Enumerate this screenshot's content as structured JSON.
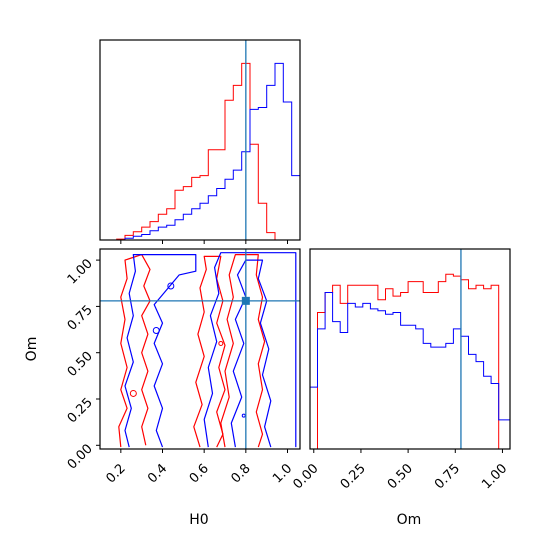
{
  "chart_data": {
    "type": "corner",
    "parameters": [
      "H0",
      "Om"
    ],
    "truth": {
      "H0": 0.8,
      "Om": 0.78
    },
    "colors": {
      "series_a": "#ff0000",
      "series_b": "#0000ff",
      "truth": "#1f77b4"
    },
    "panels": [
      {
        "name": "H0-histogram",
        "type": "step-histogram",
        "x_range": [
          0.1,
          1.06
        ],
        "bin_edges": [
          0.18,
          0.22,
          0.26,
          0.3,
          0.34,
          0.38,
          0.42,
          0.46,
          0.5,
          0.54,
          0.58,
          0.62,
          0.66,
          0.7,
          0.74,
          0.78,
          0.82,
          0.86,
          0.9,
          0.94,
          0.98,
          1.02,
          1.06
        ],
        "series": [
          {
            "color": "red",
            "values": [
              0.5,
              2.5,
              4.5,
              7,
              10,
              14,
              17,
              27,
              29,
              34,
              35,
              49,
              49,
              76,
              84,
              96,
              52,
              20,
              4,
              0,
              0,
              0
            ]
          },
          {
            "color": "blue",
            "values": [
              0,
              1,
              2,
              3,
              5,
              7,
              8,
              11,
              14,
              17,
              20,
              24,
              28,
              33,
              38,
              48,
              71,
              72,
              84,
              96,
              75,
              35
            ]
          }
        ]
      },
      {
        "name": "Om-histogram",
        "type": "step-histogram",
        "x_range": [
          -0.02,
          1.04
        ],
        "bin_edges": [
          -0.03,
          0.02,
          0.06,
          0.1,
          0.14,
          0.18,
          0.22,
          0.26,
          0.3,
          0.34,
          0.38,
          0.42,
          0.46,
          0.5,
          0.54,
          0.58,
          0.62,
          0.66,
          0.7,
          0.74,
          0.78,
          0.82,
          0.86,
          0.9,
          0.94,
          0.98,
          1.02,
          1.06
        ],
        "series": [
          {
            "color": "red",
            "values": [
              0,
              75,
              86,
              90,
              80,
              90,
              90,
              90,
              90,
              82,
              88,
              84,
              86,
              92,
              92,
              86,
              86,
              92,
              96,
              95,
              93,
              88,
              90,
              88,
              90,
              0,
              0
            ]
          },
          {
            "color": "blue",
            "values": [
              34,
              66,
              86,
              70,
              64,
              80,
              78,
              80,
              77,
              76,
              74,
              75,
              68,
              68,
              66,
              58,
              56,
              56,
              58,
              66,
              62,
              52,
              48,
              40,
              36,
              16,
              16
            ]
          }
        ]
      },
      {
        "name": "H0-Om-contours",
        "type": "contour",
        "x_range": [
          0.1,
          1.06
        ],
        "y_range": [
          -0.02,
          1.06
        ],
        "point": [
          0.8,
          0.78
        ],
        "note": "2D density contours of two samples"
      }
    ],
    "axes": {
      "H0_ticks": [
        "0.2",
        "0.4",
        "0.6",
        "0.8",
        "1.0"
      ],
      "Om_ticks": [
        "0.00",
        "0.25",
        "0.50",
        "0.75",
        "1.00"
      ]
    },
    "labels": {
      "h0": "H0",
      "om_x": "Om",
      "om_y": "Om"
    }
  }
}
